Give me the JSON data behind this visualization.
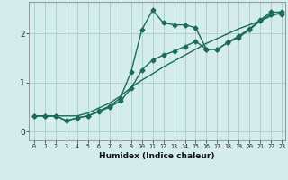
{
  "xlabel": "Humidex (Indice chaleur)",
  "bg_color": "#d4ecec",
  "grid_color": "#aacccc",
  "line_color": "#1a6b5a",
  "xlim": [
    -0.5,
    23.3
  ],
  "ylim": [
    -0.18,
    2.65
  ],
  "xticks": [
    0,
    1,
    2,
    3,
    4,
    5,
    6,
    7,
    8,
    9,
    10,
    11,
    12,
    13,
    14,
    15,
    16,
    17,
    18,
    19,
    20,
    21,
    22,
    23
  ],
  "yticks": [
    0,
    1,
    2
  ],
  "line1_x": [
    0,
    1,
    2,
    3,
    4,
    5,
    6,
    7,
    8,
    9,
    10,
    11,
    12,
    13,
    14,
    15,
    16,
    17,
    18,
    19,
    20,
    21,
    22,
    23
  ],
  "line1_y": [
    0.32,
    0.32,
    0.32,
    0.32,
    0.32,
    0.38,
    0.48,
    0.58,
    0.72,
    0.9,
    1.05,
    1.18,
    1.32,
    1.44,
    1.56,
    1.68,
    1.8,
    1.9,
    2.0,
    2.1,
    2.18,
    2.26,
    2.36,
    2.44
  ],
  "line2_x": [
    0,
    1,
    2,
    3,
    4,
    5,
    6,
    7,
    8,
    9,
    10,
    11,
    12,
    13,
    14,
    15,
    16,
    17,
    18,
    19,
    20,
    21,
    22,
    23
  ],
  "line2_y": [
    0.32,
    0.32,
    0.32,
    0.22,
    0.28,
    0.32,
    0.42,
    0.52,
    0.68,
    1.22,
    2.08,
    2.48,
    2.22,
    2.18,
    2.18,
    2.12,
    1.68,
    1.68,
    1.82,
    1.95,
    2.1,
    2.28,
    2.44,
    2.44
  ],
  "line3_x": [
    0,
    1,
    2,
    3,
    4,
    5,
    6,
    7,
    8,
    9,
    10,
    11,
    12,
    13,
    14,
    15,
    16,
    17,
    18,
    19,
    20,
    21,
    22,
    23
  ],
  "line3_y": [
    0.32,
    0.32,
    0.32,
    0.22,
    0.28,
    0.32,
    0.4,
    0.5,
    0.62,
    0.88,
    1.26,
    1.46,
    1.56,
    1.64,
    1.74,
    1.84,
    1.68,
    1.68,
    1.82,
    1.92,
    2.08,
    2.26,
    2.4,
    2.4
  ],
  "linewidth": 1.0,
  "markersize": 2.5
}
